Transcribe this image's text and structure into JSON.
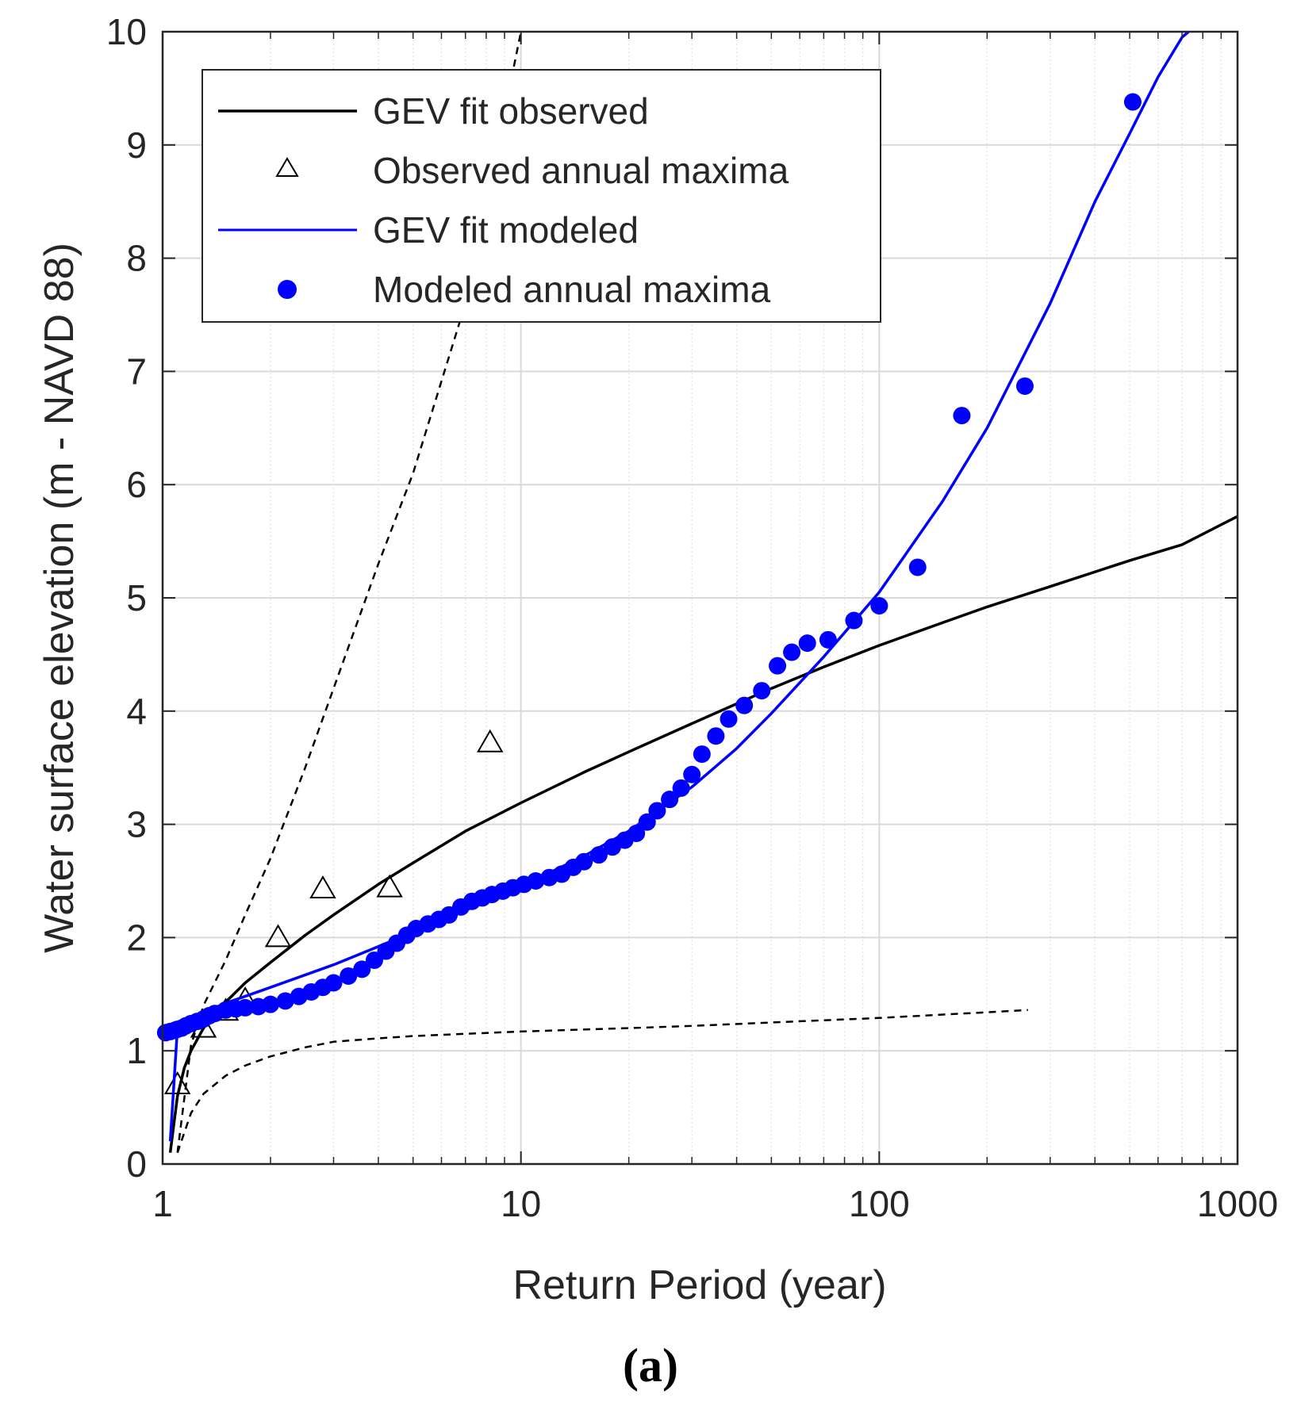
{
  "chart_data": {
    "type": "scatter",
    "panel_label": "(a)",
    "xlabel": "Return Period (year)",
    "ylabel": "Water surface elevation (m - NAVD 88)",
    "xscale": "log",
    "xlim": [
      1,
      1000
    ],
    "ylim": [
      0,
      10
    ],
    "grid": true,
    "x_ticks": [
      1,
      10,
      100,
      1000
    ],
    "x_tick_labels": [
      "1",
      "10",
      "100",
      "1000"
    ],
    "y_ticks": [
      0,
      1,
      2,
      3,
      4,
      5,
      6,
      7,
      8,
      9,
      10
    ],
    "y_tick_labels": [
      "0",
      "1",
      "2",
      "3",
      "4",
      "5",
      "6",
      "7",
      "8",
      "9",
      "10"
    ],
    "legend_position": "top-left",
    "colors": {
      "observed": "#000000",
      "modeled": "#0000ff"
    },
    "legend": [
      {
        "label": "GEV fit observed",
        "marker": "line",
        "series": "gev_obs"
      },
      {
        "label": "Observed annual maxima",
        "marker": "triangle",
        "series": "obs_max"
      },
      {
        "label": "GEV fit modeled",
        "marker": "line",
        "series": "gev_mod"
      },
      {
        "label": "Modeled annual maxima",
        "marker": "dot",
        "series": "mod_max"
      }
    ],
    "series": [
      {
        "name": "GEV fit observed",
        "kind": "line",
        "style": "solid",
        "color": "#000000",
        "x": [
          1.05,
          1.1,
          1.15,
          1.2,
          1.3,
          1.4,
          1.5,
          1.7,
          2,
          2.5,
          3,
          4,
          5,
          7,
          10,
          15,
          20,
          30,
          50,
          70,
          100,
          150,
          200,
          300,
          500,
          700,
          1000
        ],
        "y": [
          0.1,
          0.6,
          0.85,
          1.0,
          1.2,
          1.33,
          1.43,
          1.6,
          1.78,
          2.02,
          2.2,
          2.47,
          2.66,
          2.94,
          3.19,
          3.46,
          3.64,
          3.89,
          4.2,
          4.39,
          4.58,
          4.78,
          4.92,
          5.1,
          5.33,
          5.47,
          5.72
        ]
      },
      {
        "name": "Confidence bound upper (observed)",
        "kind": "line",
        "style": "dashed",
        "color": "#000000",
        "x": [
          1.1,
          1.2,
          1.3,
          1.5,
          1.7,
          2,
          2.5,
          3,
          4,
          5,
          7,
          8.5,
          10
        ],
        "y": [
          0.1,
          1.05,
          1.4,
          1.8,
          2.2,
          2.7,
          3.5,
          4.2,
          5.3,
          6.1,
          7.6,
          8.9,
          10.0
        ]
      },
      {
        "name": "Confidence bound lower (observed)",
        "kind": "line",
        "style": "dashed",
        "color": "#000000",
        "x": [
          1.1,
          1.2,
          1.3,
          1.5,
          1.7,
          2,
          2.5,
          3,
          4,
          5,
          7,
          10,
          20,
          30,
          50,
          100,
          200,
          260
        ],
        "y": [
          0.1,
          0.45,
          0.62,
          0.78,
          0.87,
          0.95,
          1.03,
          1.08,
          1.11,
          1.13,
          1.15,
          1.17,
          1.2,
          1.22,
          1.25,
          1.29,
          1.34,
          1.36
        ]
      },
      {
        "name": "Observed annual maxima",
        "kind": "scatter",
        "marker": "triangle",
        "color": "#000000",
        "x": [
          1.1,
          1.3,
          1.5,
          1.7,
          2.1,
          2.8,
          4.3,
          8.2
        ],
        "y": [
          0.7,
          1.2,
          1.35,
          1.45,
          2.0,
          2.43,
          2.44,
          3.72
        ]
      },
      {
        "name": "GEV fit modeled",
        "kind": "line",
        "style": "solid",
        "color": "#0000ff",
        "x": [
          1.05,
          1.1,
          1.3,
          1.5,
          2,
          3,
          4,
          5,
          7,
          10,
          15,
          20,
          30,
          40,
          50,
          70,
          100,
          150,
          200,
          300,
          400,
          500,
          600,
          700,
          730
        ],
        "y": [
          0.2,
          1.2,
          1.34,
          1.42,
          1.56,
          1.76,
          1.92,
          2.05,
          2.24,
          2.45,
          2.72,
          2.94,
          3.33,
          3.67,
          3.98,
          4.48,
          5.05,
          5.85,
          6.5,
          7.6,
          8.5,
          9.1,
          9.6,
          9.95,
          10.0
        ]
      },
      {
        "name": "Modeled annual maxima",
        "kind": "scatter",
        "marker": "dot",
        "color": "#0000ff",
        "x": [
          1.02,
          1.05,
          1.08,
          1.1,
          1.13,
          1.16,
          1.2,
          1.25,
          1.3,
          1.35,
          1.4,
          1.5,
          1.6,
          1.7,
          1.85,
          2.0,
          2.2,
          2.4,
          2.6,
          2.8,
          3.0,
          3.3,
          3.6,
          3.9,
          4.2,
          4.5,
          4.8,
          5.1,
          5.5,
          5.9,
          6.3,
          6.8,
          7.3,
          7.8,
          8.3,
          8.9,
          9.5,
          10.2,
          11,
          12,
          13,
          14,
          15,
          16.5,
          18,
          19.5,
          21,
          22.5,
          24,
          26,
          28,
          30,
          32,
          35,
          38,
          42,
          47,
          52,
          57,
          63,
          72,
          85,
          100,
          128,
          170,
          255,
          510
        ],
        "y": [
          1.16,
          1.17,
          1.18,
          1.19,
          1.2,
          1.22,
          1.24,
          1.26,
          1.28,
          1.31,
          1.33,
          1.36,
          1.37,
          1.38,
          1.39,
          1.41,
          1.44,
          1.48,
          1.52,
          1.56,
          1.6,
          1.66,
          1.72,
          1.8,
          1.88,
          1.95,
          2.02,
          2.08,
          2.12,
          2.16,
          2.2,
          2.27,
          2.32,
          2.35,
          2.38,
          2.41,
          2.44,
          2.47,
          2.5,
          2.53,
          2.56,
          2.62,
          2.67,
          2.73,
          2.8,
          2.86,
          2.92,
          3.02,
          3.12,
          3.22,
          3.32,
          3.44,
          3.62,
          3.78,
          3.93,
          4.05,
          4.18,
          4.4,
          4.52,
          4.6,
          4.63,
          4.8,
          4.93,
          5.27,
          6.61,
          6.87,
          9.38
        ]
      }
    ]
  }
}
